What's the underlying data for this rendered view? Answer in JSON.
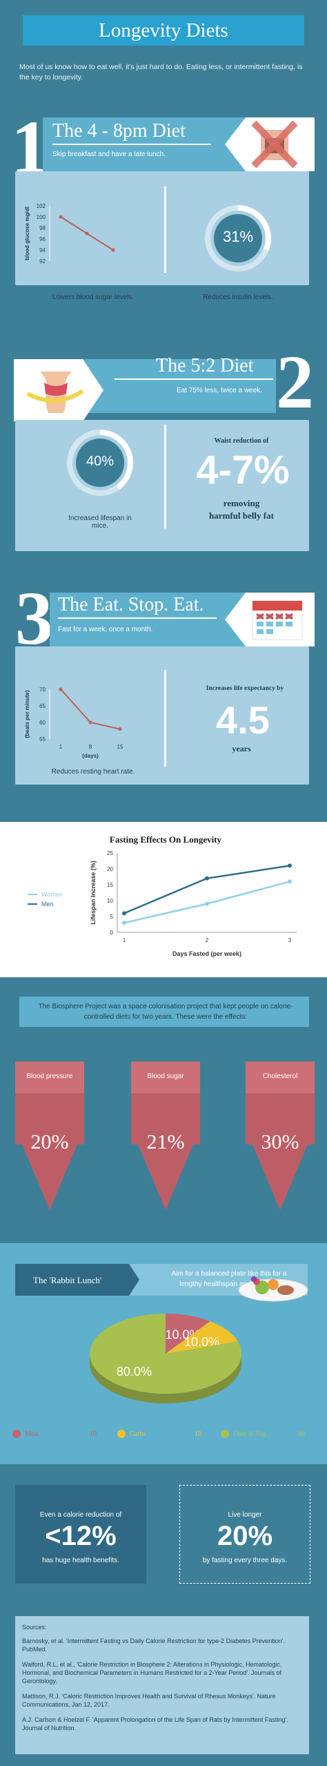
{
  "header": {
    "title": "Longevity Diets",
    "intro": "Most of us know how to eat well, it's just hard to do. Eating less, or intermittent fasting, is the key to longevity."
  },
  "diet1": {
    "number": "1",
    "title": "The 4 - 8pm Diet",
    "subtitle": "Skip breakfast and have a late lunch.",
    "chart_caption": "Lowers blood sugar levels.",
    "ring_value": "31%",
    "ring_fraction": 0.31,
    "ring_caption": "Reduces insulin levels."
  },
  "diet2": {
    "number": "2",
    "title": "The 5:2 Diet",
    "subtitle": "Eat 75% less, twice a week.",
    "ring_value": "40%",
    "ring_fraction": 0.4,
    "ring_caption": "Increased lifespan in mice.",
    "waist_label": "Waist reduction of",
    "waist_value": "4-7%",
    "waist_caption": "removing harmful belly fat"
  },
  "diet3": {
    "number": "3",
    "title": "The Eat. Stop. Eat.",
    "subtitle": "Fast for a week, once a month.",
    "chart_caption": "Reduces resting heart rate.",
    "life_label": "Increases life expectancy by",
    "life_value": "4.5",
    "life_unit": "years"
  },
  "biosphere": {
    "text": "The Biosphere Project was a space colonisation project that kept people on calorie-controlled diets for two years. These were the effects:",
    "arrows": [
      {
        "label": "Blood pressure",
        "value": "20%"
      },
      {
        "label": "Blood sugar",
        "value": "21%"
      },
      {
        "label": "Cholesterol",
        "value": "30%"
      }
    ]
  },
  "rabbit": {
    "title": "The 'Rabbit Lunch'",
    "text": "Aim for a balanced plate like this for a lengthy healthspan and lifespan."
  },
  "bottom": {
    "left_top": "Even a calorie reduction of",
    "left_value": "<12%",
    "left_bottom": "has huge health benefits.",
    "right_top": "Live longer",
    "right_value": "20%",
    "right_bottom": "by fasting every three days."
  },
  "sources": {
    "heading": "Sources:",
    "items": [
      "Barnosky, et al. 'Intermittent Fasting vs Daily Calorie Restriction for type-2 Diabetes Prevention'. PubMed.",
      "Walford, R.L, et al., 'Calorie Restriction in Biosphere 2: Alterations in Physiologic, Hematologic, Hormonal, and Biochemical Parameters in Humans Restricted for a 2-Year Period'. Journals of Gerontology.",
      "Mattison, R.J. 'Caloric Restriction Improves Health and Survival of Rhesus Monkeys'. Nature Communications, Jan 12, 2017.",
      "A.J. Carlson & Hoelzel F. 'Apparent Prolongation of the Life Span of Rats by Intermittent Fasting'. Journal of Nutrition."
    ]
  },
  "chart_data": [
    {
      "type": "line",
      "ylabel": "blood glucose mg/dl",
      "xlabel": "",
      "x": [
        1,
        2,
        3
      ],
      "values": [
        100,
        97,
        94
      ],
      "ylim": [
        92,
        102
      ],
      "yticks": [
        "92",
        "94",
        "96",
        "98",
        "100",
        "102"
      ],
      "color": "#c0605b"
    },
    {
      "type": "line",
      "ylabel": "(beats per minute)",
      "xlabel": "(days)",
      "x": [
        1,
        8,
        15
      ],
      "xticks": [
        "1",
        "8",
        "15"
      ],
      "values": [
        70,
        60,
        58
      ],
      "ylim": [
        55,
        70
      ],
      "yticks": [
        "55",
        "60",
        "65",
        "70"
      ],
      "color": "#c0605b"
    },
    {
      "type": "line",
      "title": "Fasting Effects On Longevity",
      "xlabel": "Days Fasted (per week)",
      "ylabel": "Lifespan Increase (%)",
      "categories": [
        "1",
        "2",
        "3"
      ],
      "ylim": [
        0,
        25
      ],
      "yticks": [
        "0",
        "5",
        "10",
        "15",
        "20",
        "25"
      ],
      "series": [
        {
          "name": "Women",
          "values": [
            3,
            9,
            16
          ],
          "color": "#8fd0e6"
        },
        {
          "name": "Men",
          "values": [
            6,
            17,
            21
          ],
          "color": "#2c6d8c"
        }
      ]
    },
    {
      "type": "pie",
      "slices": [
        {
          "name": "Meat",
          "value": 10.0,
          "label": "10.0%",
          "legend_value": "10",
          "color": "#c36470"
        },
        {
          "name": "Carbs",
          "value": 10.0,
          "label": "10.0%",
          "legend_value": "10",
          "color": "#f1c12d"
        },
        {
          "name": "Fruit & Veg",
          "value": 80.0,
          "label": "80.0%",
          "legend_value": "80",
          "color": "#a8c04e"
        }
      ]
    }
  ]
}
